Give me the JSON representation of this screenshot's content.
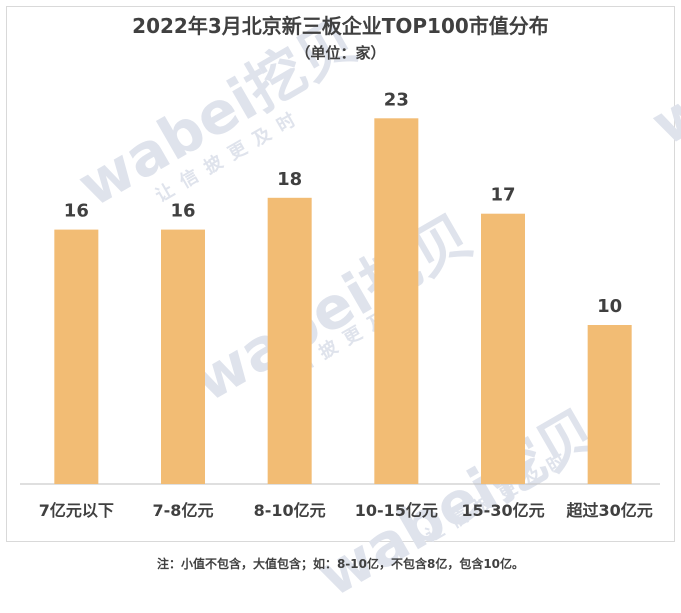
{
  "title": "2022年3月北京新三板企业TOP100市值分布",
  "subtitle": "（单位：家）",
  "watermark": {
    "brand": "wabei挖贝",
    "slogan": "让信披更及时"
  },
  "footnote": "注：小值不包含，大值包含；如：8-10亿，不包含8亿，包含10亿。",
  "colors": {
    "bar": "#f2bc74",
    "axis": "#bfbfbf",
    "text": "#404040"
  },
  "chart_data": {
    "type": "bar",
    "title": "2022年3月北京新三板企业TOP100市值分布",
    "subtitle": "（单位：家）",
    "categories": [
      "7亿元以下",
      "7-8亿元",
      "8-10亿元",
      "10-15亿元",
      "15-30亿元",
      "超过30亿元"
    ],
    "values": [
      16,
      16,
      18,
      23,
      17,
      10
    ],
    "ylim": [
      0,
      25
    ],
    "grid": false,
    "legend": "none"
  }
}
